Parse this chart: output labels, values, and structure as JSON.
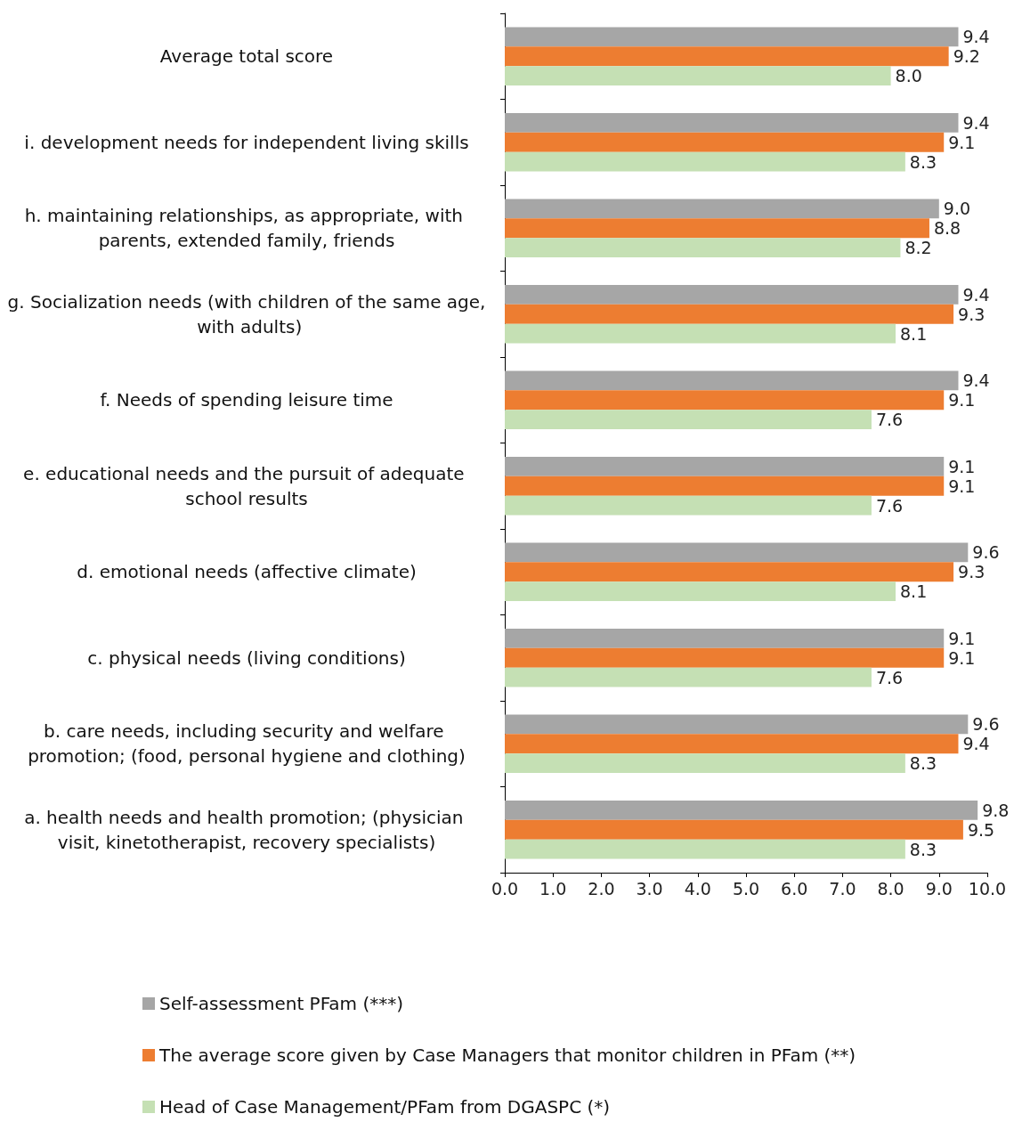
{
  "chart_data": {
    "type": "bar",
    "orientation": "horizontal",
    "categories": [
      "Average total score",
      "i. development needs for independent living skills",
      "h. maintaining relationships, as appropriate, with parents, extended family, friends",
      "g. Socialization needs (with children of the same age, with adults)",
      "f. Needs of spending leisure time",
      "e. educational needs and the pursuit of adequate school results",
      "d. emotional needs (affective climate)",
      "c. physical needs (living conditions)",
      "b. care needs, including security and welfare promotion; (food, personal hygiene and clothing)",
      "a. health needs and health promotion; (physician visit, kinetotherapist, recovery specialists)"
    ],
    "series": [
      {
        "name": "Self-assessment PFam (***)",
        "color": "#a6a6a6",
        "values": [
          9.4,
          9.4,
          9.0,
          9.4,
          9.4,
          9.1,
          9.6,
          9.1,
          9.6,
          9.8
        ],
        "value_labels": [
          "9.4",
          "9.4",
          "9.0",
          "9.4",
          "9.4",
          "9.1",
          "9.6",
          "9.1",
          "9.6",
          "9.8"
        ]
      },
      {
        "name": "The average score given by Case Managers that monitor children in PFam (**)",
        "color": "#ed7d31",
        "values": [
          9.2,
          9.1,
          8.8,
          9.3,
          9.1,
          9.1,
          9.3,
          9.1,
          9.4,
          9.5
        ],
        "value_labels": [
          "9.2",
          "9.1",
          "8.8",
          "9.3",
          "9.1",
          "9.1",
          "9.3",
          "9.1",
          "9.4",
          "9.5"
        ]
      },
      {
        "name": "Head of Case Management/PFam from DGASPC (*)",
        "color": "#c5e0b4",
        "values": [
          8.0,
          8.3,
          8.2,
          8.1,
          7.6,
          7.6,
          8.1,
          7.6,
          8.3,
          8.3
        ],
        "value_labels": [
          "8.0",
          "8.3",
          "8.2",
          "8.1",
          "7.6",
          "7.6",
          "8.1",
          "7.6",
          "8.3",
          "8.3"
        ]
      }
    ],
    "xlim": [
      0,
      10
    ],
    "xticks": [
      {
        "value": 0,
        "label": "0.0"
      },
      {
        "value": 1,
        "label": "1.0"
      },
      {
        "value": 2,
        "label": "2.0"
      },
      {
        "value": 3,
        "label": "3.0"
      },
      {
        "value": 4,
        "label": "4.0"
      },
      {
        "value": 5,
        "label": "5.0"
      },
      {
        "value": 6,
        "label": "6.0"
      },
      {
        "value": 7,
        "label": "7.0"
      },
      {
        "value": 8,
        "label": "8.0"
      },
      {
        "value": 9,
        "label": "9.0"
      },
      {
        "value": 10,
        "label": "10.0"
      }
    ],
    "grid": false,
    "legend": "bottom"
  }
}
